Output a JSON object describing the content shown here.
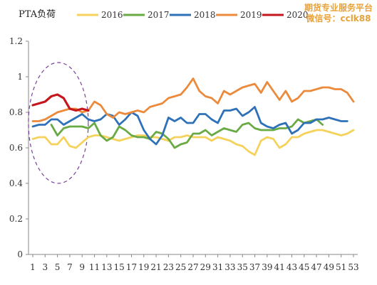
{
  "watermark": {
    "line1": "期货专业服务平台",
    "line2": "微信号：cclk88"
  },
  "chart_data": {
    "type": "line",
    "title": "PTA负荷",
    "xlabel": "",
    "ylabel": "",
    "ylim": [
      0,
      1.2
    ],
    "yticks": [
      "0",
      "0.2",
      "0.4",
      "0.6",
      "0.8",
      "1",
      "1.2"
    ],
    "xlim": [
      1,
      53
    ],
    "xticks": [
      1,
      3,
      5,
      7,
      9,
      11,
      13,
      15,
      17,
      19,
      21,
      23,
      25,
      27,
      29,
      31,
      33,
      35,
      37,
      39,
      41,
      43,
      45,
      47,
      49,
      51,
      53
    ],
    "grid": false,
    "legend": "top",
    "annotation": "dashed purple ellipse around weeks 1-9, values 0.4-1.08",
    "series": [
      {
        "name": "2016",
        "color": "#f5d25c",
        "x_start": 1,
        "values": [
          0.65,
          0.66,
          0.66,
          0.62,
          0.62,
          0.66,
          0.61,
          0.6,
          0.63,
          0.66,
          0.67,
          0.67,
          0.66,
          0.65,
          0.64,
          0.65,
          0.66,
          0.67,
          0.67,
          0.66,
          0.66,
          0.65,
          0.64,
          0.66,
          0.66,
          0.67,
          0.66,
          0.66,
          0.66,
          0.64,
          0.66,
          0.65,
          0.64,
          0.62,
          0.61,
          0.58,
          0.56,
          0.64,
          0.66,
          0.65,
          0.6,
          0.62,
          0.66,
          0.66,
          0.68,
          0.69,
          0.7,
          0.7,
          0.69,
          0.68,
          0.67,
          0.68,
          0.7
        ]
      },
      {
        "name": "2017",
        "color": "#6aaa44",
        "x_start": 4,
        "values": [
          0.73,
          0.67,
          0.71,
          0.72,
          0.72,
          0.72,
          0.71,
          0.74,
          0.67,
          0.64,
          0.66,
          0.72,
          0.7,
          0.67,
          0.66,
          0.66,
          0.65,
          0.69,
          0.68,
          0.65,
          0.6,
          0.62,
          0.63,
          0.68,
          0.68,
          0.7,
          0.67,
          0.69,
          0.71,
          0.7,
          0.69,
          0.73,
          0.74,
          0.71,
          0.7,
          0.7,
          0.7,
          0.71,
          0.71,
          0.72,
          0.76,
          0.74,
          0.75,
          0.76,
          0.73
        ]
      },
      {
        "name": "2018",
        "color": "#2f71b8",
        "x_start": 1,
        "values": [
          0.72,
          0.73,
          0.73,
          0.76,
          0.76,
          0.73,
          0.75,
          0.77,
          0.79,
          0.76,
          0.75,
          0.76,
          0.79,
          0.78,
          0.73,
          0.76,
          0.8,
          0.78,
          0.7,
          0.65,
          0.62,
          0.67,
          0.77,
          0.75,
          0.77,
          0.74,
          0.74,
          0.79,
          0.79,
          0.76,
          0.74,
          0.81,
          0.81,
          0.82,
          0.78,
          0.8,
          0.83,
          0.74,
          0.72,
          0.71,
          0.73,
          0.74,
          0.68,
          0.7,
          0.74,
          0.74,
          0.76,
          0.76,
          0.77,
          0.76,
          0.75,
          0.75
        ]
      },
      {
        "name": "2019",
        "color": "#ec8a3c",
        "x_start": 1,
        "values": [
          0.75,
          0.75,
          0.76,
          0.78,
          0.8,
          0.81,
          0.82,
          0.82,
          0.8,
          0.81,
          0.86,
          0.84,
          0.79,
          0.77,
          0.8,
          0.79,
          0.8,
          0.81,
          0.8,
          0.83,
          0.84,
          0.85,
          0.88,
          0.89,
          0.9,
          0.94,
          0.99,
          0.92,
          0.89,
          0.88,
          0.85,
          0.92,
          0.9,
          0.92,
          0.94,
          0.95,
          0.96,
          0.91,
          0.97,
          0.92,
          0.87,
          0.92,
          0.86,
          0.88,
          0.92,
          0.92,
          0.93,
          0.94,
          0.94,
          0.93,
          0.93,
          0.91,
          0.86
        ]
      },
      {
        "name": "2020",
        "color": "#c4161c",
        "x_start": 1,
        "values": [
          0.84,
          0.85,
          0.86,
          0.89,
          0.9,
          0.88,
          0.82,
          0.81,
          0.82,
          0.81
        ]
      }
    ]
  }
}
